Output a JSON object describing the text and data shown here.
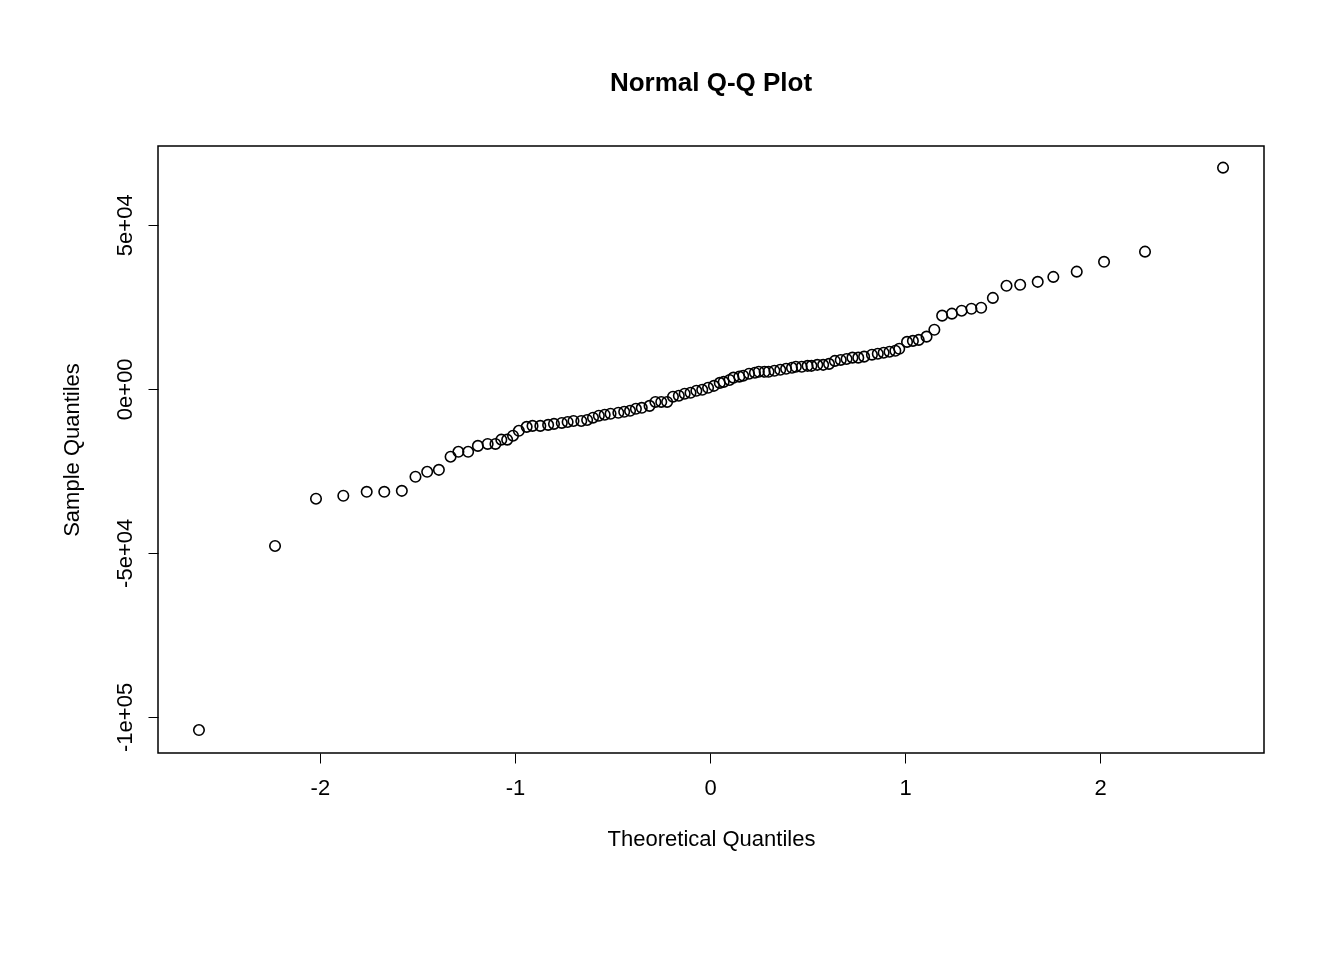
{
  "chart_data": {
    "type": "scatter",
    "title": "Normal Q-Q Plot",
    "xlabel": "Theoretical Quantiles",
    "ylabel": "Sample Quantiles",
    "xlim": [
      -2.83,
      2.84
    ],
    "xticks": [
      -2,
      -1,
      0,
      1,
      2
    ],
    "ylim": [
      -111000,
      74000
    ],
    "yticks": [
      {
        "value": -100000,
        "label": "-1e+05"
      },
      {
        "value": -50000,
        "label": "-5e+04"
      },
      {
        "value": 0,
        "label": "0e+00"
      },
      {
        "value": 50000,
        "label": "5e+04"
      }
    ],
    "marker": "circle",
    "grid": false,
    "series": [
      {
        "color": "#000000",
        "x": [
          -2.62,
          -2.23,
          -2.02,
          -1.88,
          -1.76,
          -1.67,
          -1.58,
          -1.51,
          -1.45,
          -1.39,
          -1.33,
          -1.29,
          -1.24,
          -1.19,
          -1.14,
          -1.1,
          -1.07,
          -1.04,
          -1.01,
          -0.98,
          -0.94,
          -0.91,
          -0.87,
          -0.83,
          -0.8,
          -0.76,
          -0.73,
          -0.7,
          -0.66,
          -0.63,
          -0.6,
          -0.57,
          -0.54,
          -0.51,
          -0.47,
          -0.44,
          -0.41,
          -0.38,
          -0.35,
          -0.31,
          -0.28,
          -0.25,
          -0.22,
          -0.19,
          -0.16,
          -0.13,
          -0.1,
          -0.07,
          -0.04,
          -0.01,
          0.02,
          0.05,
          0.07,
          0.1,
          0.12,
          0.15,
          0.17,
          0.2,
          0.23,
          0.25,
          0.28,
          0.3,
          0.33,
          0.36,
          0.39,
          0.42,
          0.44,
          0.47,
          0.5,
          0.52,
          0.55,
          0.58,
          0.61,
          0.64,
          0.67,
          0.7,
          0.73,
          0.76,
          0.79,
          0.83,
          0.86,
          0.89,
          0.92,
          0.95,
          0.97,
          1.01,
          1.04,
          1.07,
          1.11,
          1.15,
          1.19,
          1.24,
          1.29,
          1.34,
          1.39,
          1.45,
          1.52,
          1.59,
          1.68,
          1.76,
          1.88,
          2.02,
          2.23,
          2.63
        ],
        "values": [
          -104000,
          -47900,
          -33500,
          -32600,
          -31400,
          -31400,
          -31100,
          -26800,
          -25300,
          -24700,
          -20700,
          -19200,
          -19200,
          -17400,
          -16800,
          -16800,
          -15500,
          -15500,
          -14300,
          -12800,
          -11600,
          -11300,
          -11300,
          -11000,
          -10700,
          -10400,
          -10100,
          -9800,
          -9800,
          -9500,
          -8800,
          -8200,
          -7900,
          -7600,
          -7300,
          -7000,
          -6700,
          -6100,
          -5800,
          -5200,
          -4000,
          -4000,
          -4000,
          -2400,
          -2100,
          -1500,
          -1200,
          -600,
          -300,
          300,
          900,
          1800,
          2100,
          2700,
          3400,
          3700,
          4000,
          4600,
          4900,
          5200,
          5200,
          5200,
          5500,
          5800,
          6100,
          6400,
          6700,
          6700,
          7000,
          7000,
          7300,
          7300,
          7600,
          8500,
          8800,
          9100,
          9500,
          9500,
          9800,
          10400,
          10700,
          11000,
          11300,
          11600,
          12200,
          14300,
          14600,
          14900,
          15900,
          18000,
          22300,
          22900,
          23800,
          24400,
          24700,
          27700,
          31400,
          31700,
          32600,
          34100,
          35700,
          38700,
          41800,
          67400
        ]
      }
    ]
  }
}
